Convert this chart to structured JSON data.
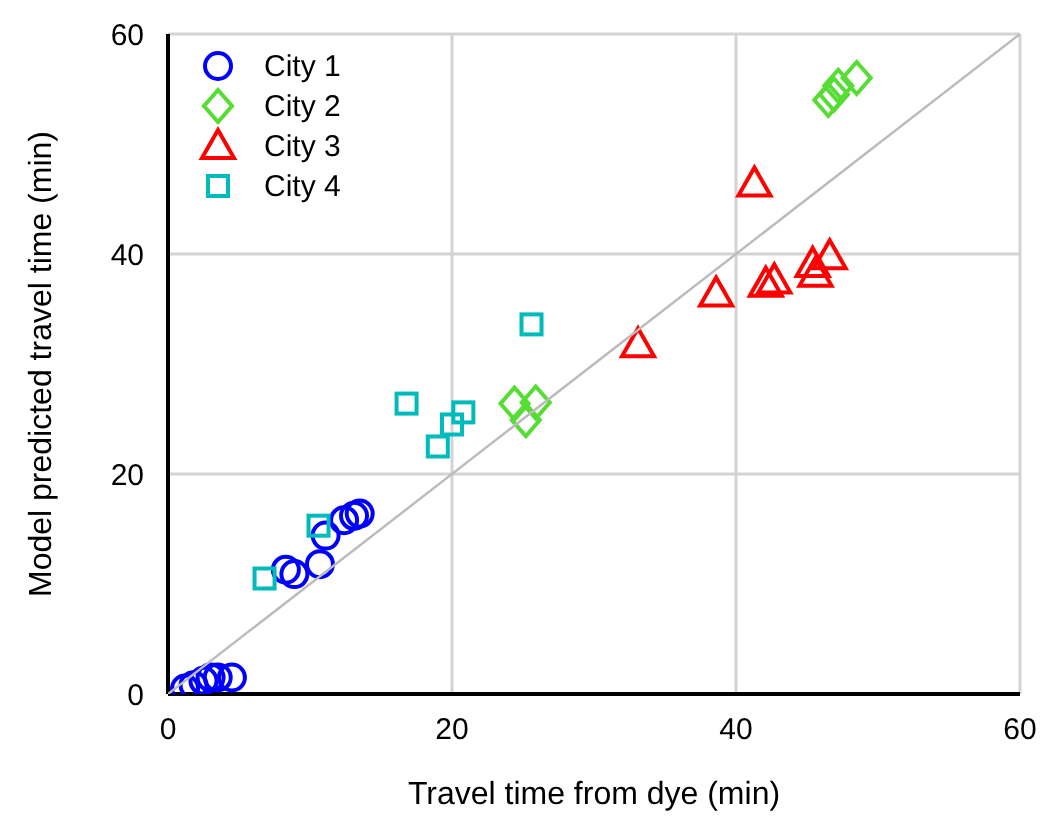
{
  "chart_data": {
    "type": "scatter",
    "xlabel": "Travel time from dye (min)",
    "ylabel": "Model predicted travel time (min)",
    "xlim": [
      0,
      60
    ],
    "ylim": [
      0,
      60
    ],
    "xticks": [
      0,
      20,
      40,
      60
    ],
    "yticks": [
      0,
      20,
      40,
      60
    ],
    "grid": true,
    "legend": "top left",
    "series": [
      {
        "name": "City 1",
        "color": "#0000ff",
        "marker": "circle",
        "x": [
          1.2,
          1.8,
          2.5,
          3,
          3.5,
          4.5,
          8.3,
          8.9,
          10.7,
          11.1,
          12.4,
          13.1,
          13.5
        ],
        "values": [
          0.5,
          0.8,
          1.2,
          1.5,
          1.5,
          1.5,
          11.3,
          10.9,
          11.8,
          14.4,
          15.8,
          16.2,
          16.4
        ]
      },
      {
        "name": "City 2",
        "color": "#55dd33",
        "marker": "diamond",
        "x": [
          24.4,
          25.9,
          25.2,
          46.5,
          46.9,
          47.2,
          48.5
        ],
        "values": [
          26.4,
          26.5,
          24.9,
          54,
          54.5,
          55.3,
          56
        ]
      },
      {
        "name": "City 3",
        "color": "#ff0000",
        "marker": "triangle",
        "x": [
          33.1,
          38.6,
          41.3,
          42.1,
          42.7,
          45.4,
          45.6,
          46.6
        ],
        "values": [
          31.8,
          36.4,
          46.4,
          37.3,
          37.6,
          39.1,
          38.2,
          39.8
        ]
      },
      {
        "name": "City 4",
        "color": "#00bbbb",
        "marker": "square",
        "x": [
          10.6,
          6.8,
          16.8,
          20.8,
          20,
          19,
          25.6
        ],
        "values": [
          15.3,
          10.5,
          26.4,
          25.6,
          24.5,
          22.5,
          33.6
        ]
      },
      {
        "type": "line",
        "color": "#bbbbbb",
        "x": [
          0,
          60
        ],
        "values": [
          0,
          60
        ]
      }
    ]
  }
}
